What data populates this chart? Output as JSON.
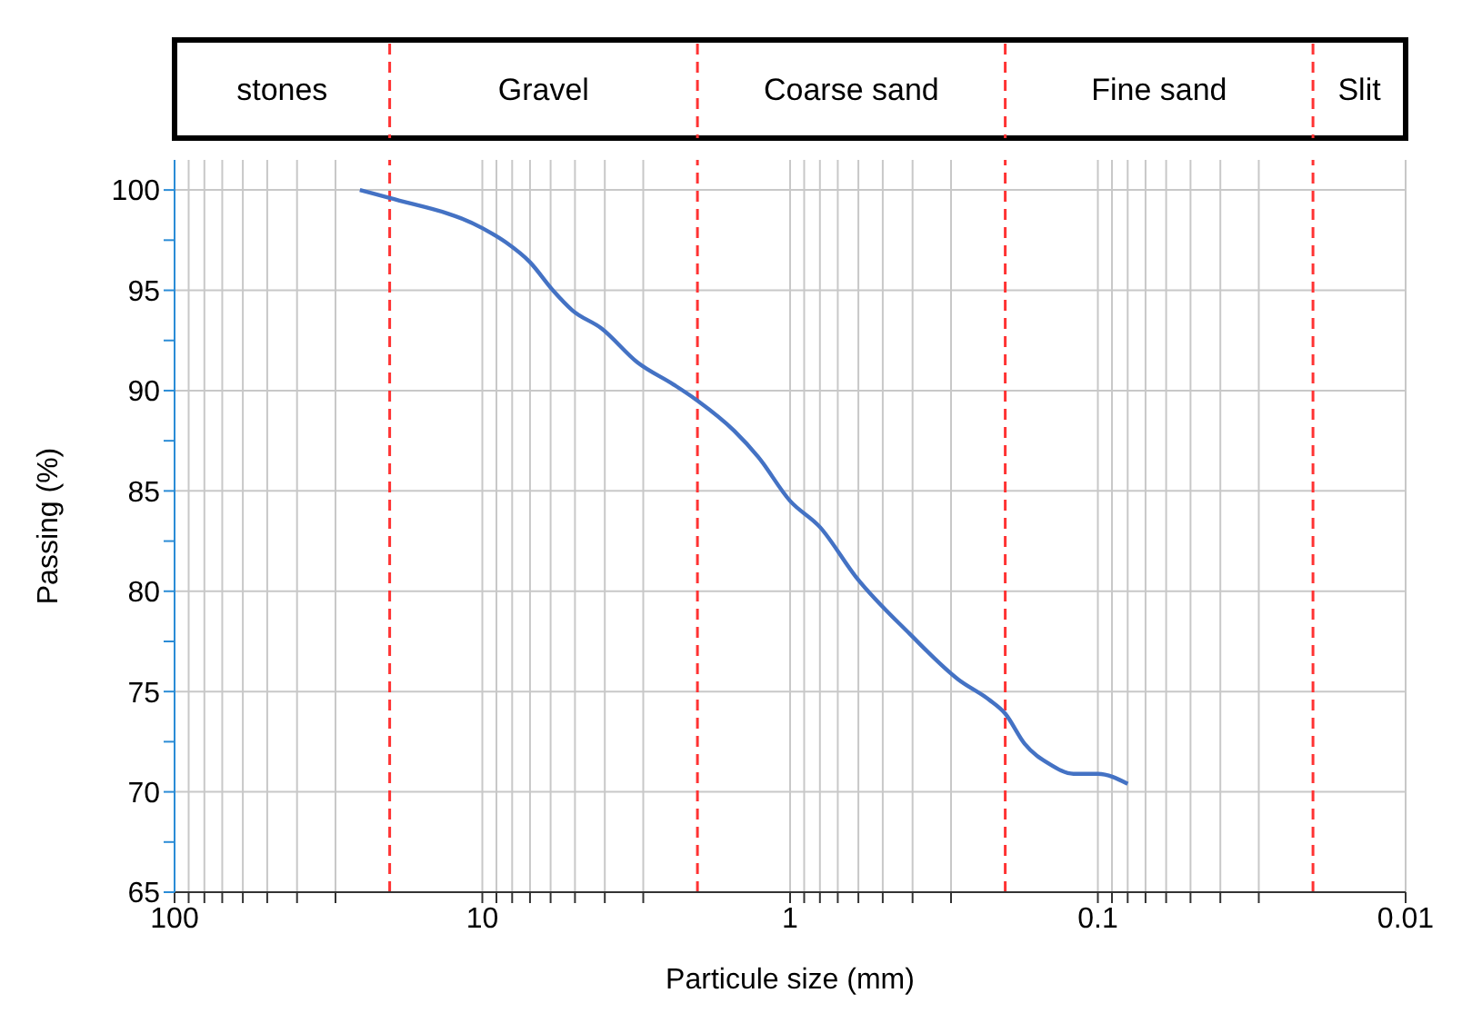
{
  "chart_data": {
    "type": "line",
    "xlabel": "Particule size (mm)",
    "ylabel": "Passing (%)",
    "log": "x",
    "xlim": [
      100,
      0.01
    ],
    "xticks": [
      100,
      {
        "value": 90,
        "label": null
      },
      {
        "value": 80,
        "label": null
      },
      {
        "value": 70,
        "label": null
      },
      {
        "value": 60,
        "label": null
      },
      {
        "value": 50,
        "label": null
      },
      {
        "value": 40,
        "label": null
      },
      {
        "value": 30,
        "label": null
      },
      10,
      {
        "value": 9,
        "label": null
      },
      {
        "value": 8,
        "label": null
      },
      {
        "value": 7,
        "label": null
      },
      {
        "value": 6,
        "label": null
      },
      {
        "value": 5,
        "label": null
      },
      {
        "value": 4,
        "label": null
      },
      {
        "value": 3,
        "label": null
      },
      1,
      {
        "value": 0.9,
        "label": null
      },
      {
        "value": 0.8,
        "label": null
      },
      {
        "value": 0.7,
        "label": null
      },
      {
        "value": 0.6,
        "label": null
      },
      {
        "value": 0.5,
        "label": null
      },
      {
        "value": 0.4,
        "label": null
      },
      {
        "value": 0.3,
        "label": null
      },
      0.1,
      {
        "value": 0.09,
        "label": null
      },
      {
        "value": 0.08,
        "label": null
      },
      {
        "value": 0.07,
        "label": null
      },
      {
        "value": 0.06,
        "label": null
      },
      {
        "value": 0.05,
        "label": null
      },
      {
        "value": 0.04,
        "label": null
      },
      {
        "value": 0.03,
        "label": null
      },
      0.01
    ],
    "ylim": [
      65,
      101.5
    ],
    "yticks": [
      65,
      {
        "value": 67.5,
        "label": null
      },
      70,
      {
        "value": 72.5,
        "label": null
      },
      75,
      {
        "value": 77.5,
        "label": null
      },
      80,
      {
        "value": 82.5,
        "label": null
      },
      85,
      {
        "value": 87.5,
        "label": null
      },
      90,
      {
        "value": 92.5,
        "label": null
      },
      95,
      {
        "value": 97.5,
        "label": null
      },
      100
    ],
    "grid": true,
    "marker": "none",
    "line_style": "solid",
    "series": [
      {
        "color": "#4472c4",
        "x": [
          25,
          20,
          10,
          8.4,
          7,
          5.9,
          5.1,
          4.1,
          3.13,
          2.39,
          2,
          1.52,
          1.27,
          1,
          0.8,
          0.61,
          0.41,
          0.284,
          0.226,
          0.2,
          0.173,
          0.144,
          0.12,
          0.1,
          0.08
        ],
        "values": [
          100,
          99.6,
          98.1,
          97.4,
          96.4,
          95,
          94,
          93.1,
          91.4,
          90.3,
          89.5,
          88,
          86.7,
          84.5,
          83.2,
          80.7,
          77.9,
          75.6,
          74.6,
          73.9,
          72.4,
          71.4,
          70.9,
          70.9,
          70.4
        ]
      }
    ],
    "ref_lines": [
      {
        "axis": "x",
        "value": 20,
        "color": "#ff3333",
        "line_style": "dashed"
      },
      {
        "axis": "x",
        "value": 2,
        "color": "#ff3333",
        "line_style": "dashed"
      },
      {
        "axis": "x",
        "value": 0.2,
        "color": "#ff3333",
        "line_style": "dashed"
      },
      {
        "axis": "x",
        "value": 0.02,
        "color": "#ff3333",
        "line_style": "dashed"
      }
    ],
    "annotations": [
      "stones",
      "Gravel",
      "Coarse sand",
      "Fine sand",
      "Slit"
    ]
  }
}
